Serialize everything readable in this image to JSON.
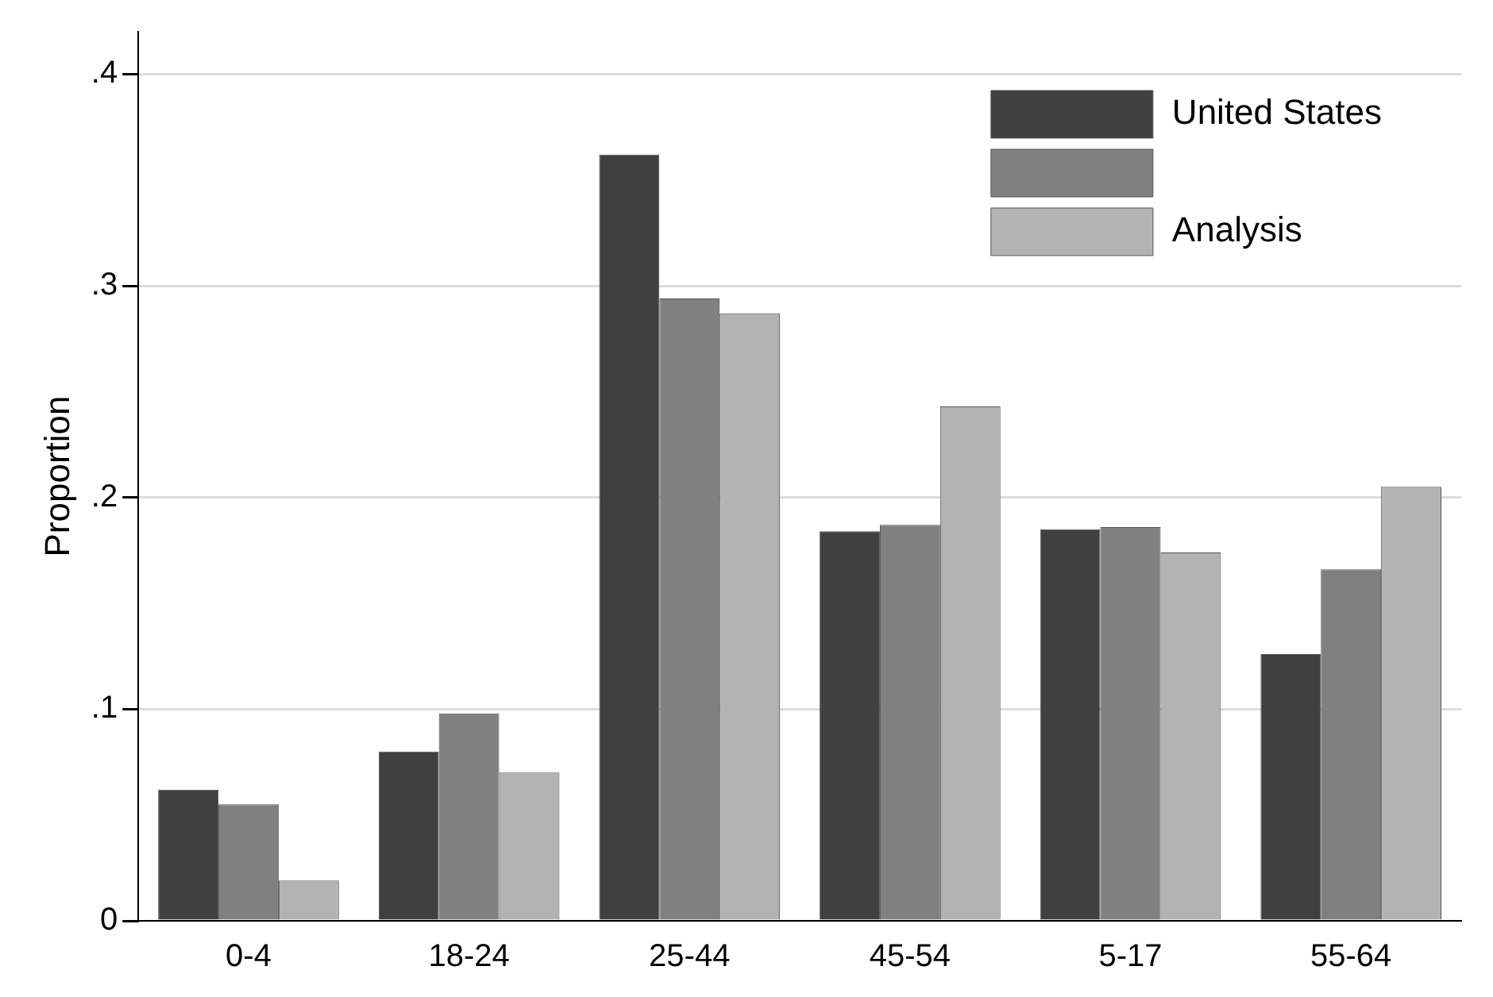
{
  "chart_data": {
    "type": "bar",
    "ylabel": "Proportion",
    "categories": [
      "0-4",
      "18-24",
      "25-44",
      "45-54",
      "5-17",
      "55-64"
    ],
    "series": [
      {
        "name": "United States",
        "color": "#404040",
        "values": [
          0.062,
          0.08,
          0.362,
          0.184,
          0.185,
          0.126
        ]
      },
      {
        "color": "#808080",
        "values": [
          0.055,
          0.098,
          0.294,
          0.187,
          0.186,
          0.166
        ]
      },
      {
        "name": "Analysis",
        "color": "#b3b3b3",
        "values": [
          0.019,
          0.07,
          0.287,
          0.243,
          0.174,
          0.205
        ]
      }
    ],
    "ylim": [
      0,
      0.42
    ],
    "yticks": [
      0,
      {
        "value": 0.1,
        "label": ".1"
      },
      {
        "value": 0.2,
        "label": ".2"
      },
      {
        "value": 0.3,
        "label": ".3"
      },
      {
        "value": 0.4,
        "label": ".4"
      }
    ],
    "grid": "y",
    "legend": "top right"
  }
}
